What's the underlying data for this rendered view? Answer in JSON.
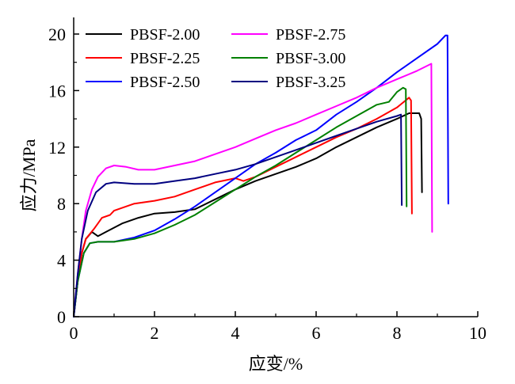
{
  "chart_data": {
    "type": "line",
    "title": "",
    "xlabel": "应变/%",
    "ylabel": "应力/MPa",
    "xlim": [
      0,
      10
    ],
    "ylim": [
      0,
      21
    ],
    "xticks": [
      0,
      2,
      4,
      6,
      8,
      10
    ],
    "yticks": [
      0,
      4,
      8,
      12,
      16,
      20
    ],
    "grid": false,
    "legend_position": "top",
    "series": [
      {
        "name": "PBSF-2.00",
        "color": "#000000",
        "points": [
          [
            0,
            0
          ],
          [
            0.1,
            2.5
          ],
          [
            0.2,
            4.5
          ],
          [
            0.3,
            5.5
          ],
          [
            0.45,
            6.0
          ],
          [
            0.6,
            5.7
          ],
          [
            0.8,
            6.0
          ],
          [
            1.2,
            6.6
          ],
          [
            1.6,
            7.0
          ],
          [
            2.0,
            7.3
          ],
          [
            2.5,
            7.4
          ],
          [
            3.0,
            7.6
          ],
          [
            3.5,
            8.3
          ],
          [
            4.0,
            9.0
          ],
          [
            4.5,
            9.6
          ],
          [
            5.0,
            10.1
          ],
          [
            5.5,
            10.6
          ],
          [
            6.0,
            11.2
          ],
          [
            6.5,
            12.0
          ],
          [
            7.0,
            12.7
          ],
          [
            7.5,
            13.4
          ],
          [
            8.0,
            14.0
          ],
          [
            8.3,
            14.4
          ],
          [
            8.55,
            14.4
          ],
          [
            8.6,
            14.0
          ],
          [
            8.62,
            8.8
          ]
        ]
      },
      {
        "name": "PBSF-2.25",
        "color": "#ff0000",
        "points": [
          [
            0,
            0
          ],
          [
            0.1,
            2.5
          ],
          [
            0.2,
            4.5
          ],
          [
            0.3,
            5.5
          ],
          [
            0.5,
            6.2
          ],
          [
            0.7,
            7.0
          ],
          [
            0.9,
            7.2
          ],
          [
            1.0,
            7.5
          ],
          [
            1.5,
            8.0
          ],
          [
            2.0,
            8.2
          ],
          [
            2.5,
            8.5
          ],
          [
            3.0,
            9.0
          ],
          [
            3.5,
            9.5
          ],
          [
            4.0,
            9.8
          ],
          [
            4.2,
            9.6
          ],
          [
            4.5,
            9.9
          ],
          [
            5.0,
            10.6
          ],
          [
            5.5,
            11.3
          ],
          [
            6.0,
            12.0
          ],
          [
            6.5,
            12.7
          ],
          [
            7.0,
            13.3
          ],
          [
            7.5,
            14.0
          ],
          [
            8.0,
            14.8
          ],
          [
            8.3,
            15.5
          ],
          [
            8.35,
            15.3
          ],
          [
            8.37,
            7.3
          ]
        ]
      },
      {
        "name": "PBSF-2.50",
        "color": "#0000ff",
        "points": [
          [
            0,
            0
          ],
          [
            0.1,
            2.5
          ],
          [
            0.25,
            4.5
          ],
          [
            0.4,
            5.2
          ],
          [
            0.6,
            5.3
          ],
          [
            1.0,
            5.3
          ],
          [
            1.5,
            5.6
          ],
          [
            2.0,
            6.1
          ],
          [
            2.5,
            6.9
          ],
          [
            3.0,
            7.8
          ],
          [
            3.5,
            8.8
          ],
          [
            4.0,
            9.8
          ],
          [
            4.5,
            10.8
          ],
          [
            5.0,
            11.6
          ],
          [
            5.5,
            12.5
          ],
          [
            6.0,
            13.2
          ],
          [
            6.5,
            14.3
          ],
          [
            7.0,
            15.2
          ],
          [
            7.5,
            16.2
          ],
          [
            8.0,
            17.3
          ],
          [
            8.5,
            18.3
          ],
          [
            9.0,
            19.3
          ],
          [
            9.2,
            19.9
          ],
          [
            9.25,
            19.9
          ],
          [
            9.27,
            8.0
          ]
        ]
      },
      {
        "name": "PBSF-2.75",
        "color": "#ff00ff",
        "points": [
          [
            0,
            0
          ],
          [
            0.1,
            3.0
          ],
          [
            0.2,
            5.5
          ],
          [
            0.3,
            7.5
          ],
          [
            0.45,
            9.0
          ],
          [
            0.6,
            9.9
          ],
          [
            0.8,
            10.5
          ],
          [
            1.0,
            10.7
          ],
          [
            1.3,
            10.6
          ],
          [
            1.6,
            10.4
          ],
          [
            2.0,
            10.4
          ],
          [
            2.5,
            10.7
          ],
          [
            3.0,
            11.0
          ],
          [
            3.5,
            11.5
          ],
          [
            4.0,
            12.0
          ],
          [
            4.5,
            12.6
          ],
          [
            5.0,
            13.2
          ],
          [
            5.5,
            13.7
          ],
          [
            6.0,
            14.3
          ],
          [
            6.5,
            14.9
          ],
          [
            7.0,
            15.5
          ],
          [
            7.5,
            16.2
          ],
          [
            8.0,
            16.8
          ],
          [
            8.5,
            17.4
          ],
          [
            8.85,
            17.9
          ],
          [
            8.87,
            6.0
          ]
        ]
      },
      {
        "name": "PBSF-3.00",
        "color": "#008000",
        "points": [
          [
            0,
            0
          ],
          [
            0.1,
            2.5
          ],
          [
            0.25,
            4.5
          ],
          [
            0.4,
            5.2
          ],
          [
            0.6,
            5.3
          ],
          [
            1.0,
            5.3
          ],
          [
            1.5,
            5.5
          ],
          [
            2.0,
            5.9
          ],
          [
            2.5,
            6.5
          ],
          [
            3.0,
            7.2
          ],
          [
            3.5,
            8.1
          ],
          [
            4.0,
            9.0
          ],
          [
            4.5,
            9.9
          ],
          [
            5.0,
            10.7
          ],
          [
            5.5,
            11.6
          ],
          [
            6.0,
            12.5
          ],
          [
            6.5,
            13.4
          ],
          [
            7.0,
            14.2
          ],
          [
            7.5,
            15.0
          ],
          [
            7.8,
            15.2
          ],
          [
            8.0,
            15.9
          ],
          [
            8.15,
            16.2
          ],
          [
            8.22,
            16.1
          ],
          [
            8.24,
            7.8
          ]
        ]
      },
      {
        "name": "PBSF-3.25",
        "color": "#000080",
        "points": [
          [
            0,
            0
          ],
          [
            0.1,
            3.0
          ],
          [
            0.2,
            5.5
          ],
          [
            0.35,
            7.5
          ],
          [
            0.55,
            8.8
          ],
          [
            0.8,
            9.4
          ],
          [
            1.0,
            9.5
          ],
          [
            1.5,
            9.4
          ],
          [
            2.0,
            9.4
          ],
          [
            2.5,
            9.6
          ],
          [
            3.0,
            9.8
          ],
          [
            3.5,
            10.1
          ],
          [
            4.0,
            10.4
          ],
          [
            4.5,
            10.8
          ],
          [
            5.0,
            11.3
          ],
          [
            5.5,
            11.8
          ],
          [
            6.0,
            12.3
          ],
          [
            6.5,
            12.8
          ],
          [
            7.0,
            13.3
          ],
          [
            7.5,
            13.8
          ],
          [
            8.0,
            14.2
          ],
          [
            8.1,
            14.3
          ],
          [
            8.12,
            7.9
          ]
        ]
      }
    ]
  }
}
